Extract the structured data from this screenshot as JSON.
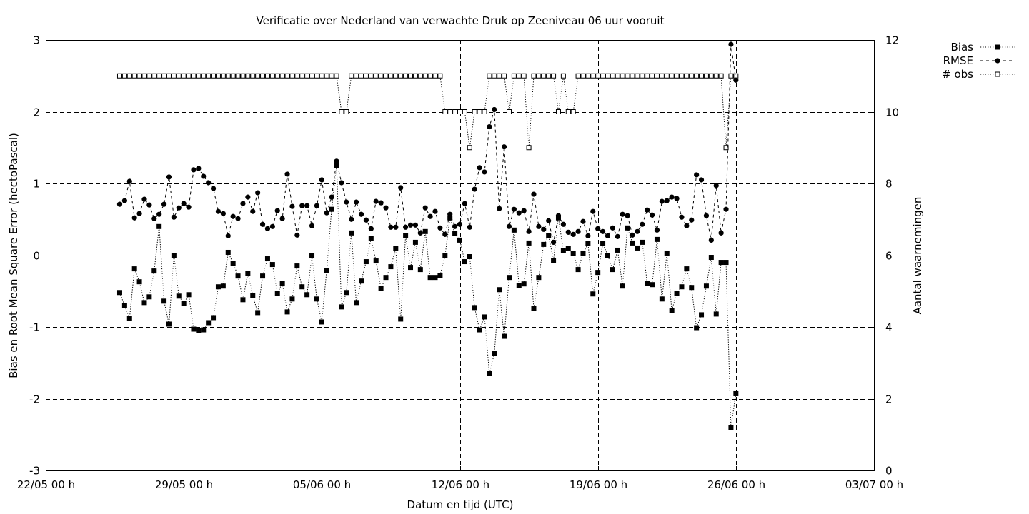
{
  "chart_data": {
    "type": "line",
    "title": "Verificatie over Nederland van verwachte Druk op Zeeniveau 06 uur vooruit",
    "xlabel": "Datum en tijd (UTC)",
    "ylabel": "Bias en Root Mean Square Error (hectoPascal)",
    "y2label": "Aantal waarnemingen",
    "x_axis_type": "time",
    "xlim": [
      "2021-05-22T00:00",
      "2021-07-03T00:00"
    ],
    "x_ticks": [
      {
        "t": "2021-05-22T00:00",
        "label": "22/05 00 h"
      },
      {
        "t": "2021-05-29T00:00",
        "label": "29/05 00 h"
      },
      {
        "t": "2021-06-05T00:00",
        "label": "05/06 00 h"
      },
      {
        "t": "2021-06-12T00:00",
        "label": "12/06 00 h"
      },
      {
        "t": "2021-06-19T00:00",
        "label": "19/06 00 h"
      },
      {
        "t": "2021-06-26T00:00",
        "label": "26/06 00 h"
      },
      {
        "t": "2021-07-03T00:00",
        "label": "03/07 00 h"
      }
    ],
    "ylim": [
      -3,
      3
    ],
    "y_ticks": [
      -3,
      -2,
      -1,
      0,
      1,
      2,
      3
    ],
    "y2lim": [
      0,
      12
    ],
    "y2_ticks": [
      0,
      2,
      4,
      6,
      8,
      10,
      12
    ],
    "grid": true,
    "legend_position": "top-right outside",
    "x_start": "2021-05-25T18:00",
    "x_step_hours": 6,
    "series": [
      {
        "name": "Bias",
        "marker": "filled-square",
        "line": "dotted",
        "axis": "left",
        "values": [
          -0.52,
          -0.7,
          -0.88,
          -0.19,
          -0.37,
          -0.66,
          -0.58,
          -0.22,
          0.4,
          -0.64,
          -0.96,
          0.0,
          -0.57,
          -0.67,
          -0.55,
          -1.03,
          -1.05,
          -1.04,
          -0.94,
          -0.87,
          -0.44,
          -0.43,
          0.04,
          -0.11,
          -0.29,
          -0.62,
          -0.25,
          -0.56,
          -0.8,
          -0.29,
          -0.05,
          -0.13,
          -0.53,
          -0.39,
          -0.79,
          -0.61,
          -0.15,
          -0.44,
          -0.55,
          -0.01,
          -0.61,
          -0.93,
          -0.21,
          0.64,
          1.25,
          -0.72,
          -0.52,
          0.31,
          -0.66,
          -0.36,
          -0.09,
          0.23,
          -0.08,
          -0.46,
          -0.31,
          -0.16,
          0.09,
          -0.89,
          0.27,
          -0.17,
          0.18,
          -0.2,
          0.33,
          -0.31,
          -0.31,
          -0.28,
          -0.01,
          0.52,
          0.3,
          0.21,
          -0.09,
          -0.02,
          -0.73,
          -1.04,
          -0.86,
          -1.65,
          -1.37,
          -0.48,
          -1.13,
          -0.31,
          0.35,
          -0.42,
          -0.4,
          0.17,
          -0.74,
          -0.31,
          0.15,
          0.27,
          -0.07,
          0.52,
          0.06,
          0.09,
          0.02,
          -0.2,
          0.03,
          0.16,
          -0.54,
          -0.24,
          0.16,
          0.0,
          -0.2,
          0.07,
          -0.43,
          0.38,
          0.17,
          0.1,
          0.18,
          -0.39,
          -0.41,
          0.22,
          -0.61,
          0.03,
          -0.77,
          -0.53,
          -0.44,
          -0.19,
          -0.45,
          -1.01,
          -0.83,
          -0.43,
          -0.03,
          -0.82,
          -0.1,
          -0.1,
          -2.4,
          -1.93
        ]
      },
      {
        "name": "RMSE",
        "marker": "filled-circle",
        "line": "dashed",
        "axis": "left",
        "values": [
          0.71,
          0.76,
          1.03,
          0.52,
          0.58,
          0.78,
          0.7,
          0.51,
          0.57,
          0.71,
          1.09,
          0.53,
          0.66,
          0.72,
          0.67,
          1.19,
          1.21,
          1.1,
          1.01,
          0.93,
          0.61,
          0.58,
          0.27,
          0.54,
          0.51,
          0.72,
          0.81,
          0.61,
          0.87,
          0.43,
          0.37,
          0.4,
          0.62,
          0.51,
          1.13,
          0.68,
          0.28,
          0.69,
          0.69,
          0.41,
          0.69,
          1.05,
          0.59,
          0.81,
          1.31,
          1.01,
          0.74,
          0.5,
          0.74,
          0.57,
          0.49,
          0.37,
          0.75,
          0.73,
          0.66,
          0.39,
          0.39,
          0.94,
          0.39,
          0.42,
          0.42,
          0.31,
          0.66,
          0.54,
          0.61,
          0.38,
          0.29,
          0.57,
          0.4,
          0.43,
          0.72,
          0.39,
          0.92,
          1.22,
          1.16,
          1.79,
          2.03,
          0.65,
          1.51,
          0.4,
          0.64,
          0.59,
          0.62,
          0.33,
          0.85,
          0.4,
          0.36,
          0.48,
          0.18,
          0.55,
          0.43,
          0.32,
          0.29,
          0.33,
          0.47,
          0.27,
          0.61,
          0.37,
          0.33,
          0.27,
          0.38,
          0.26,
          0.57,
          0.55,
          0.28,
          0.33,
          0.43,
          0.63,
          0.56,
          0.35,
          0.75,
          0.76,
          0.81,
          0.79,
          0.53,
          0.41,
          0.49,
          1.12,
          1.05,
          0.55,
          0.21,
          0.97,
          0.31,
          0.64,
          2.94,
          2.44
        ]
      },
      {
        "name": "# obs",
        "marker": "open-square",
        "line": "dotted",
        "axis": "right",
        "values": [
          11,
          11,
          11,
          11,
          11,
          11,
          11,
          11,
          11,
          11,
          11,
          11,
          11,
          11,
          11,
          11,
          11,
          11,
          11,
          11,
          11,
          11,
          11,
          11,
          11,
          11,
          11,
          11,
          11,
          11,
          11,
          11,
          11,
          11,
          11,
          11,
          11,
          11,
          11,
          11,
          11,
          11,
          11,
          11,
          11,
          10,
          10,
          11,
          11,
          11,
          11,
          11,
          11,
          11,
          11,
          11,
          11,
          11,
          11,
          11,
          11,
          11,
          11,
          11,
          11,
          11,
          10,
          10,
          10,
          10,
          10,
          9,
          10,
          10,
          10,
          11,
          11,
          11,
          11,
          10,
          11,
          11,
          11,
          9,
          11,
          11,
          11,
          11,
          11,
          10,
          11,
          10,
          10,
          11,
          11,
          11,
          11,
          11,
          11,
          11,
          11,
          11,
          11,
          11,
          11,
          11,
          11,
          11,
          11,
          11,
          11,
          11,
          11,
          11,
          11,
          11,
          11,
          11,
          11,
          11,
          11,
          11,
          11,
          9,
          11,
          11
        ]
      }
    ]
  }
}
